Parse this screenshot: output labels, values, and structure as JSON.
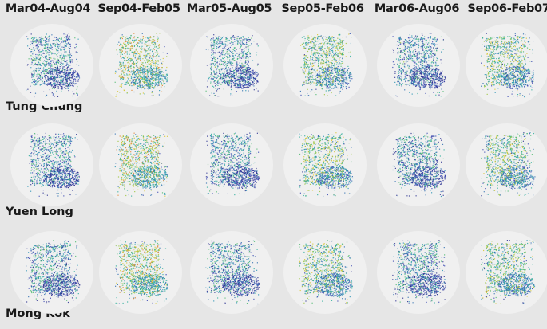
{
  "columns": [
    "Mar04-Aug04",
    "Sep04-Feb05",
    "Mar05-Aug05",
    "Sep05-Feb06",
    "Mar06-Aug06",
    "Sep06-Feb07"
  ],
  "rows": [
    {
      "label": "Tung Chung"
    },
    {
      "label": "Yuen Long"
    },
    {
      "label": "Mong Kok"
    }
  ],
  "colors": {
    "background": "#e6e6e6",
    "disc": "#f0f0f0",
    "palette": [
      "#2a2f8f",
      "#3b49b3",
      "#2f6fb0",
      "#2a93b4",
      "#2fae9c",
      "#4cb86e",
      "#9bc43c",
      "#d8c531",
      "#e0822e"
    ]
  },
  "colors_note_hue_bias": [
    0.25,
    0.55,
    0.25,
    0.45,
    0.25,
    0.45
  ]
}
